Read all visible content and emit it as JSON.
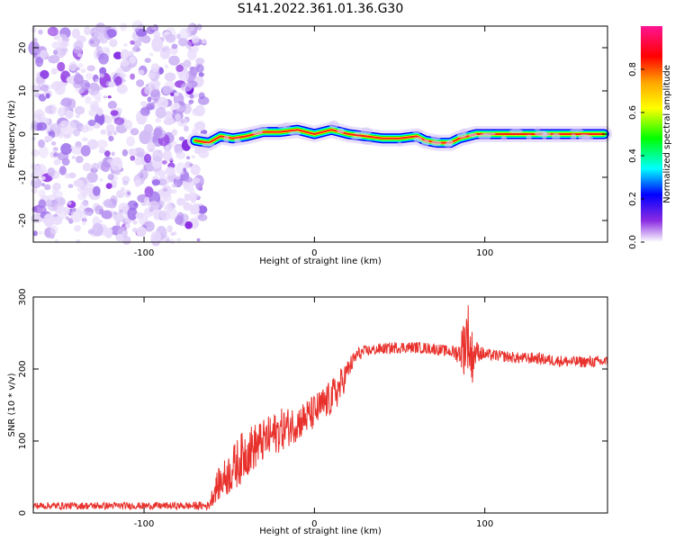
{
  "title": "S141.2022.361.01.36.G30",
  "chart_data": [
    {
      "type": "heatmap",
      "xlabel": "Height of straight line (km)",
      "ylabel": "Frequency (Hz)",
      "xlim": [
        -165,
        172
      ],
      "ylim": [
        -25,
        25
      ],
      "xticks": [
        -100,
        0,
        100
      ],
      "yticks": [
        -20,
        -10,
        0,
        10,
        20
      ],
      "colorbar": {
        "label": "Normalized spectral amplitude",
        "range": [
          0.0,
          1.0
        ],
        "ticks": [
          0.0,
          0.2,
          0.4,
          0.6,
          0.8
        ],
        "tick_labels": [
          "0.0",
          "0.2",
          "0.4",
          "0.6",
          "0.8"
        ],
        "colormap": [
          "#ffffff",
          "#8a2be2",
          "#0000ff",
          "#00ffff",
          "#00ff00",
          "#ffff00",
          "#ffa500",
          "#ff0000",
          "#ff1493"
        ]
      },
      "noise_region_x": [
        -165,
        -70
      ],
      "ridge": {
        "x": [
          -70,
          -62,
          -55,
          -48,
          -40,
          -30,
          -20,
          -10,
          0,
          10,
          20,
          30,
          40,
          50,
          60,
          65,
          72,
          80,
          85,
          90,
          95,
          100,
          110,
          120,
          130,
          140,
          150,
          160,
          170
        ],
        "freq": [
          -1.5,
          -2.0,
          -0.5,
          -1.0,
          -0.5,
          0.5,
          0.5,
          1.0,
          0.0,
          1.0,
          0.0,
          -0.5,
          -1.0,
          -1.0,
          -0.5,
          -1.5,
          -2.0,
          -2.0,
          -1.0,
          -0.5,
          0.0,
          0.0,
          0.0,
          0.0,
          0.0,
          0.0,
          0.0,
          0.0,
          0.0
        ]
      }
    },
    {
      "type": "line",
      "xlabel": "Height of straight line (km)",
      "ylabel": "SNR (10 * v/v)",
      "xlim": [
        -165,
        172
      ],
      "ylim": [
        0,
        300
      ],
      "xticks": [
        -100,
        0,
        100
      ],
      "yticks": [
        0,
        100,
        200,
        300
      ],
      "color": "#e8312c",
      "series": [
        {
          "x": [
            -165,
            -140,
            -120,
            -100,
            -80,
            -62,
            -58,
            -50,
            -45,
            -40,
            -30,
            -20,
            -10,
            0,
            10,
            15,
            20,
            25,
            30,
            40,
            50,
            60,
            70,
            80,
            85,
            88,
            90,
            92,
            95,
            100,
            110,
            120,
            130,
            140,
            150,
            160,
            172
          ],
          "y": [
            10,
            10,
            10,
            10,
            10,
            10,
            35,
            55,
            70,
            85,
            100,
            115,
            125,
            140,
            160,
            175,
            200,
            220,
            225,
            228,
            230,
            230,
            228,
            224,
            222,
            235,
            250,
            215,
            225,
            220,
            218,
            215,
            215,
            212,
            210,
            210,
            210
          ],
          "noise": [
            5,
            5,
            5,
            5,
            5,
            6,
            20,
            30,
            35,
            35,
            30,
            30,
            25,
            25,
            25,
            25,
            15,
            10,
            8,
            8,
            8,
            8,
            8,
            8,
            15,
            45,
            50,
            45,
            15,
            8,
            8,
            8,
            8,
            8,
            8,
            8,
            8
          ]
        }
      ]
    }
  ]
}
